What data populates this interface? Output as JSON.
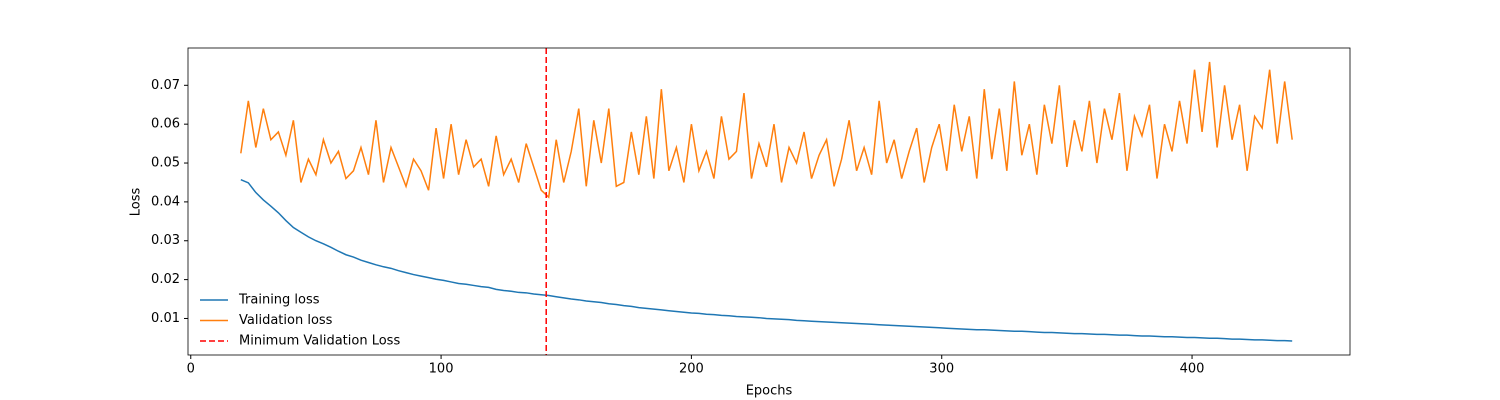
{
  "chart_data": {
    "type": "line",
    "xlabel": "Epochs",
    "ylabel": "Loss",
    "x": [
      20,
      23,
      26,
      29,
      32,
      35,
      38,
      41,
      44,
      47,
      50,
      53,
      56,
      59,
      62,
      65,
      68,
      71,
      74,
      77,
      80,
      83,
      86,
      89,
      92,
      95,
      98,
      101,
      104,
      107,
      110,
      113,
      116,
      119,
      122,
      125,
      128,
      131,
      134,
      137,
      140,
      143,
      146,
      149,
      152,
      155,
      158,
      161,
      164,
      167,
      170,
      173,
      176,
      179,
      182,
      185,
      188,
      191,
      194,
      197,
      200,
      203,
      206,
      209,
      212,
      215,
      218,
      221,
      224,
      227,
      230,
      233,
      236,
      239,
      242,
      245,
      248,
      251,
      254,
      257,
      260,
      263,
      266,
      269,
      272,
      275,
      278,
      281,
      284,
      287,
      290,
      293,
      296,
      299,
      302,
      305,
      308,
      311,
      314,
      317,
      320,
      323,
      326,
      329,
      332,
      335,
      338,
      341,
      344,
      347,
      350,
      353,
      356,
      359,
      362,
      365,
      368,
      371,
      374,
      377,
      380,
      383,
      386,
      389,
      392,
      395,
      398,
      401,
      404,
      407,
      410,
      413,
      416,
      419,
      422,
      425,
      428,
      431,
      434,
      437,
      440
    ],
    "series": [
      {
        "name": "Training loss",
        "color": "#1f77b4",
        "values": [
          0.0457,
          0.0449,
          0.0424,
          0.0405,
          0.0389,
          0.0372,
          0.0352,
          0.0334,
          0.0322,
          0.031,
          0.03,
          0.0292,
          0.0283,
          0.0273,
          0.0264,
          0.0258,
          0.025,
          0.0244,
          0.0238,
          0.0233,
          0.0229,
          0.0223,
          0.0218,
          0.0213,
          0.0209,
          0.0205,
          0.0201,
          0.0198,
          0.0194,
          0.019,
          0.0188,
          0.0185,
          0.0182,
          0.018,
          0.0175,
          0.0172,
          0.017,
          0.0167,
          0.0166,
          0.0163,
          0.0161,
          0.0159,
          0.0156,
          0.0153,
          0.015,
          0.0148,
          0.0145,
          0.0143,
          0.0141,
          0.0138,
          0.0136,
          0.0133,
          0.0131,
          0.0128,
          0.0126,
          0.0124,
          0.0122,
          0.012,
          0.0118,
          0.0116,
          0.0114,
          0.0113,
          0.0111,
          0.011,
          0.0108,
          0.0107,
          0.0105,
          0.0104,
          0.0103,
          0.0102,
          0.01,
          0.0099,
          0.0098,
          0.0097,
          0.0095,
          0.0094,
          0.0093,
          0.0092,
          0.0091,
          0.009,
          0.0089,
          0.0088,
          0.0087,
          0.0086,
          0.0085,
          0.0084,
          0.0083,
          0.0082,
          0.0081,
          0.008,
          0.0079,
          0.0078,
          0.0077,
          0.0076,
          0.0075,
          0.0074,
          0.0073,
          0.0072,
          0.0071,
          0.0071,
          0.007,
          0.0069,
          0.0068,
          0.0067,
          0.0067,
          0.0066,
          0.0065,
          0.0064,
          0.0064,
          0.0063,
          0.0062,
          0.0061,
          0.0061,
          0.006,
          0.0059,
          0.0059,
          0.0058,
          0.0057,
          0.0057,
          0.0056,
          0.0055,
          0.0055,
          0.0054,
          0.0053,
          0.0053,
          0.0052,
          0.0051,
          0.0051,
          0.005,
          0.0049,
          0.0049,
          0.0048,
          0.0047,
          0.0047,
          0.0046,
          0.0045,
          0.0045,
          0.0044,
          0.0043,
          0.0043,
          0.0042
        ]
      },
      {
        "name": "Validation loss",
        "color": "#ff7f0e",
        "values": [
          0.0525,
          0.066,
          0.054,
          0.064,
          0.056,
          0.058,
          0.052,
          0.061,
          0.045,
          0.051,
          0.047,
          0.056,
          0.05,
          0.053,
          0.046,
          0.048,
          0.054,
          0.047,
          0.061,
          0.045,
          0.054,
          0.049,
          0.044,
          0.051,
          0.048,
          0.043,
          0.059,
          0.046,
          0.06,
          0.047,
          0.056,
          0.049,
          0.051,
          0.044,
          0.057,
          0.047,
          0.051,
          0.045,
          0.055,
          0.049,
          0.043,
          0.0412,
          0.056,
          0.045,
          0.053,
          0.064,
          0.044,
          0.061,
          0.05,
          0.064,
          0.044,
          0.045,
          0.058,
          0.047,
          0.062,
          0.046,
          0.069,
          0.048,
          0.054,
          0.045,
          0.06,
          0.048,
          0.053,
          0.046,
          0.062,
          0.051,
          0.053,
          0.068,
          0.046,
          0.055,
          0.049,
          0.06,
          0.045,
          0.054,
          0.05,
          0.058,
          0.046,
          0.052,
          0.056,
          0.044,
          0.051,
          0.061,
          0.048,
          0.054,
          0.047,
          0.066,
          0.05,
          0.056,
          0.046,
          0.053,
          0.059,
          0.045,
          0.054,
          0.06,
          0.048,
          0.065,
          0.053,
          0.062,
          0.046,
          0.069,
          0.051,
          0.064,
          0.048,
          0.071,
          0.052,
          0.06,
          0.047,
          0.065,
          0.055,
          0.07,
          0.049,
          0.061,
          0.053,
          0.066,
          0.05,
          0.064,
          0.056,
          0.068,
          0.048,
          0.062,
          0.057,
          0.065,
          0.046,
          0.06,
          0.053,
          0.066,
          0.055,
          0.074,
          0.058,
          0.076,
          0.054,
          0.07,
          0.056,
          0.065,
          0.048,
          0.062,
          0.059,
          0.074,
          0.055,
          0.071,
          0.056
        ]
      }
    ],
    "vline": {
      "x": 142,
      "name": "Minimum Validation Loss",
      "color": "#ff0000"
    },
    "xlim": [
      -1.1,
      463.1
    ],
    "ylim": [
      0.0006,
      0.0796
    ],
    "xticks": [
      0,
      100,
      200,
      300,
      400
    ],
    "yticks": [
      0.01,
      0.02,
      0.03,
      0.04,
      0.05,
      0.06,
      0.07
    ],
    "legend": "lower left",
    "grid": false
  }
}
